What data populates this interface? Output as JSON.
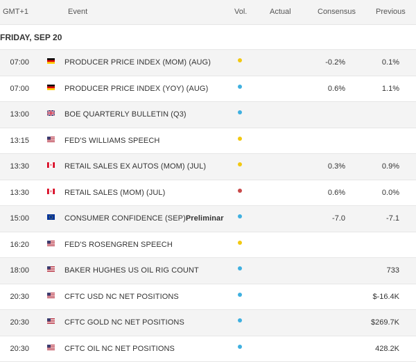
{
  "header": {
    "timezone": "GMT+1",
    "event": "Event",
    "vol": "Vol.",
    "actual": "Actual",
    "consensus": "Consensus",
    "previous": "Previous"
  },
  "date_label": "FRIDAY, SEP 20",
  "colors": {
    "vol_medium": "#f2c811",
    "vol_low": "#3fb0e0",
    "vol_high": "#c84a4a",
    "event_text": "#3b4f74"
  },
  "rows": [
    {
      "time": "07:00",
      "country": "germany-flag",
      "event": "PRODUCER PRICE INDEX (MOM) (AUG)",
      "suffix": "",
      "volatility": "medium",
      "actual": "",
      "consensus": "-0.2%",
      "previous": "0.1%"
    },
    {
      "time": "07:00",
      "country": "germany-flag",
      "event": "PRODUCER PRICE INDEX (YOY) (AUG)",
      "suffix": "",
      "volatility": "low",
      "actual": "",
      "consensus": "0.6%",
      "previous": "1.1%"
    },
    {
      "time": "13:00",
      "country": "uk-flag",
      "event": "BOE QUARTERLY BULLETIN (Q3)",
      "suffix": "",
      "volatility": "low",
      "actual": "",
      "consensus": "",
      "previous": ""
    },
    {
      "time": "13:15",
      "country": "us-flag",
      "event": "FED'S WILLIAMS SPEECH",
      "suffix": "",
      "volatility": "medium",
      "actual": "",
      "consensus": "",
      "previous": ""
    },
    {
      "time": "13:30",
      "country": "canada-flag",
      "event": "RETAIL SALES EX AUTOS (MOM) (JUL)",
      "suffix": "",
      "volatility": "medium",
      "actual": "",
      "consensus": "0.3%",
      "previous": "0.9%"
    },
    {
      "time": "13:30",
      "country": "canada-flag",
      "event": "RETAIL SALES (MOM) (JUL)",
      "suffix": "",
      "volatility": "high",
      "actual": "",
      "consensus": "0.6%",
      "previous": "0.0%"
    },
    {
      "time": "15:00",
      "country": "eu-flag",
      "event": "CONSUMER CONFIDENCE (SEP)",
      "suffix": "Preliminar",
      "volatility": "low",
      "actual": "",
      "consensus": "-7.0",
      "previous": "-7.1"
    },
    {
      "time": "16:20",
      "country": "us-flag",
      "event": "FED'S ROSENGREN SPEECH",
      "suffix": "",
      "volatility": "medium",
      "actual": "",
      "consensus": "",
      "previous": ""
    },
    {
      "time": "18:00",
      "country": "us-flag",
      "event": "BAKER HUGHES US OIL RIG COUNT",
      "suffix": "",
      "volatility": "low",
      "actual": "",
      "consensus": "",
      "previous": "733"
    },
    {
      "time": "20:30",
      "country": "us-flag",
      "event": "CFTC USD NC NET POSITIONS",
      "suffix": "",
      "volatility": "low",
      "actual": "",
      "consensus": "",
      "previous": "$-16.4K"
    },
    {
      "time": "20:30",
      "country": "us-flag",
      "event": "CFTC GOLD NC NET POSITIONS",
      "suffix": "",
      "volatility": "low",
      "actual": "",
      "consensus": "",
      "previous": "$269.7K"
    },
    {
      "time": "20:30",
      "country": "us-flag",
      "event": "CFTC OIL NC NET POSITIONS",
      "suffix": "",
      "volatility": "low",
      "actual": "",
      "consensus": "",
      "previous": "428.2K"
    }
  ]
}
